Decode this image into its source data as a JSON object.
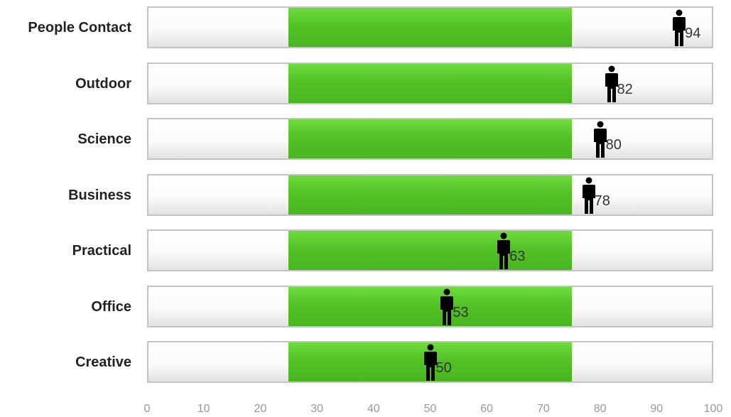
{
  "chart_data": {
    "type": "bar",
    "categories": [
      "People Contact",
      "Outdoor",
      "Science",
      "Business",
      "Practical",
      "Office",
      "Creative"
    ],
    "values": [
      94,
      82,
      80,
      78,
      63,
      53,
      50
    ],
    "average_range": [
      25,
      75
    ],
    "xlim": [
      0,
      100
    ],
    "xticks": [
      "0",
      "10",
      "20",
      "30",
      "40",
      "50",
      "60",
      "70",
      "80",
      "90",
      "100"
    ],
    "marker_icon": "person-icon",
    "colors": {
      "band": "#52c226",
      "track_border": "#c4c4c4",
      "marker": "#000000",
      "tick_text": "#999999"
    },
    "title": "",
    "xlabel": "",
    "ylabel": ""
  }
}
